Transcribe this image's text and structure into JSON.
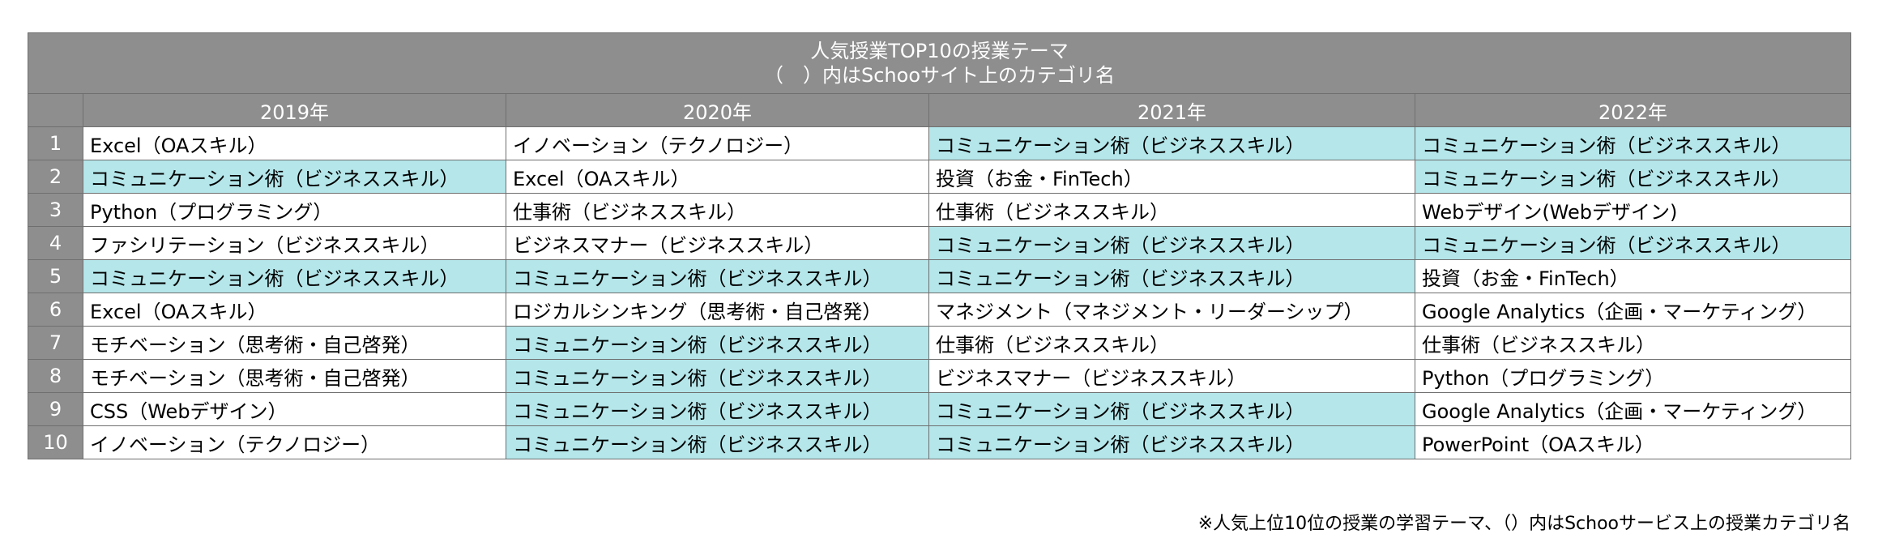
{
  "header": {
    "title_line1": "人気授業TOP10の授業テーマ",
    "title_line2": "（　）内はSchooサイト上のカテゴリ名"
  },
  "years": [
    "2019年",
    "2020年",
    "2021年",
    "2022年"
  ],
  "highlight_color": "#b4e6ea",
  "header_color": "#8e8e8e",
  "rows": [
    {
      "rank": "1",
      "cells": [
        {
          "text": "Excel（OAスキル）",
          "highlight": false
        },
        {
          "text": "イノベーション（テクノロジー）",
          "highlight": false
        },
        {
          "text": "コミュニケーション術（ビジネススキル）",
          "highlight": true
        },
        {
          "text": "コミュニケーション術（ビジネススキル）",
          "highlight": true
        }
      ]
    },
    {
      "rank": "2",
      "cells": [
        {
          "text": "コミュニケーション術（ビジネススキル）",
          "highlight": true
        },
        {
          "text": "Excel（OAスキル）",
          "highlight": false
        },
        {
          "text": "投資（お金・FinTech）",
          "highlight": false
        },
        {
          "text": "コミュニケーション術（ビジネススキル）",
          "highlight": true
        }
      ]
    },
    {
      "rank": "3",
      "cells": [
        {
          "text": "Python（プログラミング）",
          "highlight": false
        },
        {
          "text": "仕事術（ビジネススキル）",
          "highlight": false
        },
        {
          "text": "仕事術（ビジネススキル）",
          "highlight": false
        },
        {
          "text": "Webデザイン(Webデザイン)",
          "highlight": false
        }
      ]
    },
    {
      "rank": "4",
      "cells": [
        {
          "text": "ファシリテーション（ビジネススキル）",
          "highlight": false
        },
        {
          "text": "ビジネスマナー（ビジネススキル）",
          "highlight": false
        },
        {
          "text": "コミュニケーション術（ビジネススキル）",
          "highlight": true
        },
        {
          "text": "コミュニケーション術（ビジネススキル）",
          "highlight": true
        }
      ]
    },
    {
      "rank": "5",
      "cells": [
        {
          "text": "コミュニケーション術（ビジネススキル）",
          "highlight": true
        },
        {
          "text": "コミュニケーション術（ビジネススキル）",
          "highlight": true
        },
        {
          "text": "コミュニケーション術（ビジネススキル）",
          "highlight": true
        },
        {
          "text": "投資（お金・FinTech）",
          "highlight": false
        }
      ]
    },
    {
      "rank": "6",
      "cells": [
        {
          "text": "Excel（OAスキル）",
          "highlight": false
        },
        {
          "text": "ロジカルシンキング（思考術・自己啓発）",
          "highlight": false
        },
        {
          "text": "マネジメント（マネジメント・リーダーシップ）",
          "highlight": false
        },
        {
          "text": "Google Analytics（企画・マーケティング）",
          "highlight": false
        }
      ]
    },
    {
      "rank": "7",
      "cells": [
        {
          "text": "モチベーション（思考術・自己啓発）",
          "highlight": false
        },
        {
          "text": "コミュニケーション術（ビジネススキル）",
          "highlight": true
        },
        {
          "text": "仕事術（ビジネススキル）",
          "highlight": false
        },
        {
          "text": "仕事術（ビジネススキル）",
          "highlight": false
        }
      ]
    },
    {
      "rank": "8",
      "cells": [
        {
          "text": "モチベーション（思考術・自己啓発）",
          "highlight": false
        },
        {
          "text": "コミュニケーション術（ビジネススキル）",
          "highlight": true
        },
        {
          "text": "ビジネスマナー（ビジネススキル）",
          "highlight": false
        },
        {
          "text": "Python（プログラミング）",
          "highlight": false
        }
      ]
    },
    {
      "rank": "9",
      "cells": [
        {
          "text": "CSS（Webデザイン）",
          "highlight": false
        },
        {
          "text": "コミュニケーション術（ビジネススキル）",
          "highlight": true
        },
        {
          "text": "コミュニケーション術（ビジネススキル）",
          "highlight": true
        },
        {
          "text": "Google Analytics（企画・マーケティング）",
          "highlight": false
        }
      ]
    },
    {
      "rank": "10",
      "cells": [
        {
          "text": "イノベーション（テクノロジー）",
          "highlight": false
        },
        {
          "text": "コミュニケーション術（ビジネススキル）",
          "highlight": true
        },
        {
          "text": "コミュニケーション術（ビジネススキル）",
          "highlight": true
        },
        {
          "text": "PowerPoint（OAスキル）",
          "highlight": false
        }
      ]
    }
  ],
  "footnote": "※人気上位10位の授業の学習テーマ、（）内はSchooサービス上の授業カテゴリ名"
}
